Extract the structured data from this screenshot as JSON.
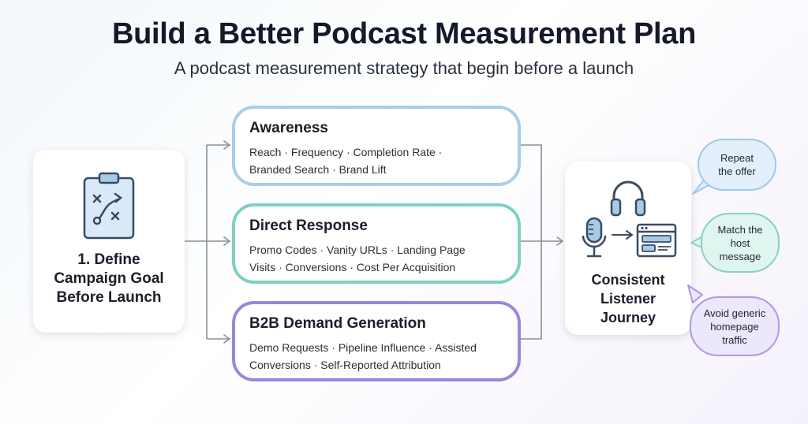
{
  "title": "Build a Better Podcast Measurement Plan",
  "subtitle": "A podcast measurement strategy that begin before a launch",
  "goal": {
    "lines": [
      "1. Define",
      "Campaign Goal",
      "Before Launch"
    ],
    "icon": "clipboard-strategy-icon"
  },
  "stages": [
    {
      "title": "Awareness",
      "metric_lines": [
        "Reach · Frequency · Completion Rate ·",
        "Branded Search · Brand Lift"
      ],
      "color": "#a9cdea"
    },
    {
      "title": "Direct Response",
      "metric_lines": [
        "Promo Codes · Vanity URLs · Landing Page",
        "Visits · Conversions · Cost Per Acquisition"
      ],
      "color": "#7fd0c3"
    },
    {
      "title": "B2B Demand Generation",
      "metric_lines": [
        "Demo Requests · Pipeline Influence · Assisted",
        "Conversions · Self-Reported Attribution"
      ],
      "color": "#9b86dc"
    }
  ],
  "journey": {
    "lines": [
      "Consistent",
      "Listener",
      "Journey"
    ],
    "icons": [
      "headphones-icon",
      "microphone-icon",
      "arrow-icon",
      "browser-window-icon"
    ]
  },
  "callouts": [
    {
      "lines": [
        "Repeat",
        "the offer"
      ],
      "color": "#e3f0fb"
    },
    {
      "lines": [
        "Match the",
        "host",
        "message"
      ],
      "color": "#dff5ef"
    },
    {
      "lines": [
        "Avoid generic",
        "homepage",
        "traffic"
      ],
      "color": "#ece7fb"
    }
  ]
}
